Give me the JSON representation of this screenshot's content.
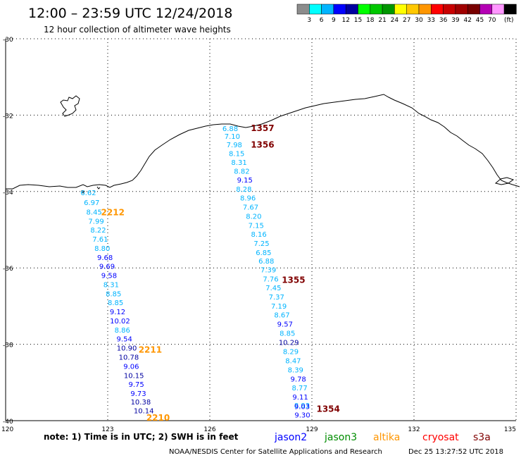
{
  "header": {
    "title": "12:00 – 23:59 UTC 12/24/2018",
    "subtitle": "12 hour collection of altimeter wave heights"
  },
  "color_scale": {
    "colors": [
      "#8c8c8c",
      "#00ffff",
      "#00b4ff",
      "#0000ff",
      "#0000a0",
      "#00ff00",
      "#00c800",
      "#009600",
      "#ffff00",
      "#ffc800",
      "#ff9600",
      "#ff0000",
      "#c80000",
      "#a00000",
      "#780000",
      "#b400b4",
      "#ff96ff",
      "#000000"
    ],
    "labels": [
      "3",
      "6",
      "9",
      "12",
      "15",
      "18",
      "21",
      "24",
      "27",
      "30",
      "33",
      "36",
      "39",
      "42",
      "45",
      "70"
    ],
    "unit": "(ft)"
  },
  "map": {
    "lon_ticks": [
      "120",
      "123",
      "126",
      "129",
      "132",
      "135"
    ],
    "lat_ticks": [
      "-30",
      "-32",
      "-34",
      "-36",
      "-38",
      "-40"
    ]
  },
  "tracks": [
    {
      "name": "west",
      "points": [
        {
          "lon": 122.43,
          "lat": -34.1,
          "v": "6.62",
          "c": "#00b4ff"
        },
        {
          "lon": 122.53,
          "lat": -34.35,
          "v": "6.97",
          "c": "#00b4ff"
        },
        {
          "lon": 122.6,
          "lat": -34.6,
          "v": "8.45",
          "c": "#00b4ff"
        },
        {
          "lon": 122.66,
          "lat": -34.84,
          "v": "7.99",
          "c": "#00b4ff"
        },
        {
          "lon": 122.72,
          "lat": -35.07,
          "v": "8.22",
          "c": "#00b4ff"
        },
        {
          "lon": 122.78,
          "lat": -35.31,
          "v": "7.61",
          "c": "#00b4ff"
        },
        {
          "lon": 122.84,
          "lat": -35.55,
          "v": "8.80",
          "c": "#00b4ff"
        },
        {
          "lon": 122.92,
          "lat": -35.79,
          "v": "9.68",
          "c": "#0000ff"
        },
        {
          "lon": 122.98,
          "lat": -36.02,
          "v": "9.69",
          "c": "#0000ff"
        },
        {
          "lon": 123.04,
          "lat": -36.26,
          "v": "9.58",
          "c": "#0000ff"
        },
        {
          "lon": 123.1,
          "lat": -36.5,
          "v": "8.31",
          "c": "#00b4ff"
        },
        {
          "lon": 123.17,
          "lat": -36.74,
          "v": "8.85",
          "c": "#00b4ff"
        },
        {
          "lon": 123.23,
          "lat": -36.97,
          "v": "8.85",
          "c": "#00b4ff"
        },
        {
          "lon": 123.29,
          "lat": -37.21,
          "v": "9.12",
          "c": "#0000ff"
        },
        {
          "lon": 123.36,
          "lat": -37.45,
          "v": "10.02",
          "c": "#0000ff"
        },
        {
          "lon": 123.43,
          "lat": -37.69,
          "v": "8.86",
          "c": "#00b4ff"
        },
        {
          "lon": 123.49,
          "lat": -37.92,
          "v": "9.54",
          "c": "#0000ff"
        },
        {
          "lon": 123.56,
          "lat": -38.16,
          "v": "10.90",
          "c": "#0000a0"
        },
        {
          "lon": 123.62,
          "lat": -38.4,
          "v": "10.78",
          "c": "#0000a0"
        },
        {
          "lon": 123.69,
          "lat": -38.64,
          "v": "9.06",
          "c": "#0000ff"
        },
        {
          "lon": 123.77,
          "lat": -38.88,
          "v": "10.15",
          "c": "#0000a0"
        },
        {
          "lon": 123.84,
          "lat": -39.11,
          "v": "9.75",
          "c": "#0000ff"
        },
        {
          "lon": 123.9,
          "lat": -39.35,
          "v": "9.73",
          "c": "#0000ff"
        },
        {
          "lon": 123.97,
          "lat": -39.58,
          "v": "10.38",
          "c": "#0000a0"
        },
        {
          "lon": 124.06,
          "lat": -39.81,
          "v": "10.14",
          "c": "#0000a0"
        }
      ]
    },
    {
      "name": "east",
      "points": [
        {
          "lon": 126.6,
          "lat": -32.42,
          "v": "6.88",
          "c": "#00b4ff"
        },
        {
          "lon": 126.66,
          "lat": -32.62,
          "v": "7.10",
          "c": "#00b4ff"
        },
        {
          "lon": 126.72,
          "lat": -32.84,
          "v": "7.98",
          "c": "#00b4ff"
        },
        {
          "lon": 126.79,
          "lat": -33.07,
          "v": "8.15",
          "c": "#00b4ff"
        },
        {
          "lon": 126.86,
          "lat": -33.3,
          "v": "8.31",
          "c": "#00b4ff"
        },
        {
          "lon": 126.94,
          "lat": -33.53,
          "v": "8.82",
          "c": "#00b4ff"
        },
        {
          "lon": 127.03,
          "lat": -33.76,
          "v": "9.15",
          "c": "#0000ff"
        },
        {
          "lon": 127.0,
          "lat": -34.0,
          "v": "8.28",
          "c": "#00b4ff"
        },
        {
          "lon": 127.12,
          "lat": -34.23,
          "v": "8.96",
          "c": "#00b4ff"
        },
        {
          "lon": 127.2,
          "lat": -34.47,
          "v": "7.67",
          "c": "#00b4ff"
        },
        {
          "lon": 127.29,
          "lat": -34.71,
          "v": "8.20",
          "c": "#00b4ff"
        },
        {
          "lon": 127.36,
          "lat": -34.95,
          "v": "7.15",
          "c": "#00b4ff"
        },
        {
          "lon": 127.44,
          "lat": -35.18,
          "v": "8.16",
          "c": "#00b4ff"
        },
        {
          "lon": 127.52,
          "lat": -35.42,
          "v": "7.25",
          "c": "#00b4ff"
        },
        {
          "lon": 127.58,
          "lat": -35.66,
          "v": "6.85",
          "c": "#00b4ff"
        },
        {
          "lon": 127.66,
          "lat": -35.89,
          "v": "6.88",
          "c": "#00b4ff"
        },
        {
          "lon": 127.72,
          "lat": -36.12,
          "v": "7.39",
          "c": "#00b4ff"
        },
        {
          "lon": 127.79,
          "lat": -36.36,
          "v": "7.76",
          "c": "#00b4ff"
        },
        {
          "lon": 127.87,
          "lat": -36.59,
          "v": "7.45",
          "c": "#00b4ff"
        },
        {
          "lon": 127.96,
          "lat": -36.83,
          "v": "7.37",
          "c": "#00b4ff"
        },
        {
          "lon": 128.03,
          "lat": -37.07,
          "v": "7.19",
          "c": "#00b4ff"
        },
        {
          "lon": 128.12,
          "lat": -37.3,
          "v": "8.67",
          "c": "#00b4ff"
        },
        {
          "lon": 128.21,
          "lat": -37.54,
          "v": "9.57",
          "c": "#0000ff"
        },
        {
          "lon": 128.28,
          "lat": -37.78,
          "v": "8.85",
          "c": "#00b4ff"
        },
        {
          "lon": 128.32,
          "lat": -38.02,
          "v": "10.29",
          "c": "#0000a0"
        },
        {
          "lon": 128.38,
          "lat": -38.26,
          "v": "8.29",
          "c": "#00b4ff"
        },
        {
          "lon": 128.45,
          "lat": -38.5,
          "v": "8.47",
          "c": "#00b4ff"
        },
        {
          "lon": 128.52,
          "lat": -38.74,
          "v": "8.39",
          "c": "#00b4ff"
        },
        {
          "lon": 128.6,
          "lat": -38.98,
          "v": "9.78",
          "c": "#0000ff"
        },
        {
          "lon": 128.64,
          "lat": -39.21,
          "v": "8.77",
          "c": "#00b4ff"
        },
        {
          "lon": 128.66,
          "lat": -39.45,
          "v": "9.11",
          "c": "#0000ff"
        },
        {
          "lon": 128.71,
          "lat": -39.67,
          "v": "8.93",
          "c": "#00b4ff"
        },
        {
          "lon": 128.71,
          "lat": -39.7,
          "v": "9.03",
          "c": "#0000ff"
        },
        {
          "lon": 128.72,
          "lat": -39.92,
          "v": "9.30",
          "c": "#0000ff"
        }
      ]
    }
  ],
  "time_labels": [
    {
      "lon": 127.55,
      "lat": -32.42,
      "v": "1357",
      "c": "#800000"
    },
    {
      "lon": 127.55,
      "lat": -32.85,
      "v": "1356",
      "c": "#800000"
    },
    {
      "lon": 128.46,
      "lat": -36.39,
      "v": "1355",
      "c": "#800000"
    },
    {
      "lon": 129.48,
      "lat": -39.77,
      "v": "1354",
      "c": "#800000"
    },
    {
      "lon": 123.15,
      "lat": -34.62,
      "v": "2212",
      "c": "#ff9600"
    },
    {
      "lon": 124.25,
      "lat": -38.22,
      "v": "2211",
      "c": "#ff9600"
    },
    {
      "lon": 124.48,
      "lat": -40.0,
      "v": "2210",
      "c": "#ff9600"
    }
  ],
  "note": "note: 1) Time is in UTC; 2) SWH is in feet",
  "legend": [
    {
      "name": "jason2",
      "color": "#0000ff"
    },
    {
      "name": "jason3",
      "color": "#008c00"
    },
    {
      "name": "altika",
      "color": "#ff9600"
    },
    {
      "name": "cryosat",
      "color": "#ff0000"
    },
    {
      "name": "s3a",
      "color": "#800000"
    }
  ],
  "footer": {
    "credit": "NOAA/NESDIS Center for Satellite Applications and Research",
    "timestamp": "Dec 25 13:27:52 UTC 2018"
  }
}
